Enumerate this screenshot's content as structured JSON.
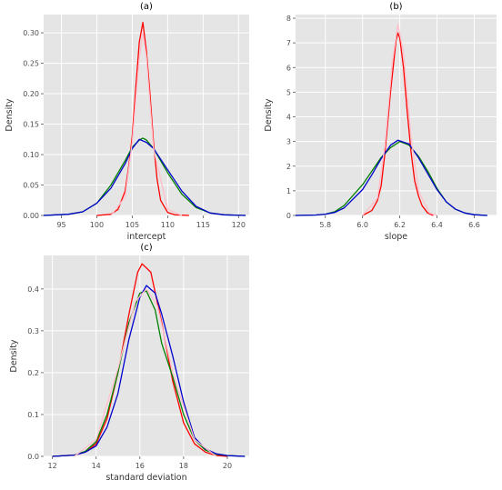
{
  "chart_data": [
    {
      "type": "line",
      "title": "(a)",
      "xlabel": "intercept",
      "ylabel": "Density",
      "xlim": [
        92.5,
        121.5
      ],
      "ylim": [
        0,
        0.33
      ],
      "xticks": [
        95,
        100,
        105,
        110,
        115,
        120
      ],
      "yticks": [
        0.0,
        0.05,
        0.1,
        0.15,
        0.2,
        0.25,
        0.3
      ],
      "ytick_labels": [
        "0.00",
        "0.05",
        "0.10",
        "0.15",
        "0.20",
        "0.25",
        "0.30"
      ],
      "grid": true,
      "series": [
        {
          "color": "#ff0000",
          "x": [
            100,
            102,
            103,
            104,
            104.5,
            105,
            105.5,
            106,
            106.5,
            107,
            107.5,
            108,
            108.5,
            109,
            110,
            111,
            113
          ],
          "y": [
            0.0,
            0.002,
            0.01,
            0.04,
            0.08,
            0.13,
            0.21,
            0.285,
            0.317,
            0.27,
            0.2,
            0.12,
            0.06,
            0.025,
            0.005,
            0.001,
            0.0
          ]
        },
        {
          "color": "#008000",
          "x": [
            92.5,
            96,
            98,
            100,
            102,
            104,
            105,
            106,
            106.5,
            107,
            108,
            110,
            112,
            114,
            116,
            118,
            121
          ],
          "y": [
            0.0,
            0.002,
            0.006,
            0.02,
            0.05,
            0.09,
            0.112,
            0.124,
            0.127,
            0.124,
            0.11,
            0.07,
            0.035,
            0.013,
            0.004,
            0.001,
            0.0
          ]
        },
        {
          "color": "#0000cd",
          "x": [
            92.5,
            96,
            98,
            100,
            102,
            104,
            105,
            106,
            107,
            108,
            110,
            112,
            114,
            116,
            118,
            121
          ],
          "y": [
            0.0,
            0.002,
            0.006,
            0.02,
            0.045,
            0.085,
            0.11,
            0.125,
            0.12,
            0.11,
            0.075,
            0.04,
            0.015,
            0.004,
            0.001,
            0.0
          ]
        },
        {
          "color": "#ffc0cb",
          "x": [
            102,
            104,
            105,
            106,
            106.5,
            107,
            108,
            110,
            112
          ],
          "y": [
            0.0,
            0.03,
            0.12,
            0.26,
            0.3,
            0.26,
            0.11,
            0.01,
            0.0
          ]
        }
      ]
    },
    {
      "type": "line",
      "title": "(b)",
      "xlabel": "slope",
      "ylabel": "Density",
      "xlim": [
        5.64,
        6.72
      ],
      "ylim": [
        0,
        8.15
      ],
      "xticks": [
        5.8,
        6.0,
        6.2,
        6.4,
        6.6
      ],
      "xtick_labels": [
        "5.8",
        "6.0",
        "6.2",
        "6.4",
        "6.6"
      ],
      "yticks": [
        0,
        1,
        2,
        3,
        4,
        5,
        6,
        7,
        8
      ],
      "ytick_labels": [
        "0",
        "1",
        "2",
        "3",
        "4",
        "5",
        "6",
        "7",
        "8"
      ],
      "grid": true,
      "series": [
        {
          "color": "#ff0000",
          "x": [
            6.0,
            6.05,
            6.08,
            6.1,
            6.12,
            6.15,
            6.18,
            6.19,
            6.2,
            6.22,
            6.24,
            6.26,
            6.28,
            6.3,
            6.32,
            6.35,
            6.38
          ],
          "y": [
            0.0,
            0.2,
            0.6,
            1.2,
            2.5,
            5.0,
            7.1,
            7.4,
            7.2,
            6.0,
            4.2,
            2.6,
            1.4,
            0.8,
            0.4,
            0.1,
            0.0
          ]
        },
        {
          "color": "#008000",
          "x": [
            5.64,
            5.75,
            5.8,
            5.85,
            5.9,
            6.0,
            6.05,
            6.1,
            6.15,
            6.2,
            6.25,
            6.3,
            6.35,
            6.4,
            6.45,
            6.5,
            6.55,
            6.6,
            6.67
          ],
          "y": [
            0.0,
            0.02,
            0.05,
            0.15,
            0.4,
            1.25,
            1.8,
            2.35,
            2.75,
            3.0,
            2.85,
            2.4,
            1.8,
            1.1,
            0.55,
            0.25,
            0.1,
            0.03,
            0.0
          ]
        },
        {
          "color": "#0000cd",
          "x": [
            5.64,
            5.75,
            5.8,
            5.85,
            5.9,
            6.0,
            6.05,
            6.1,
            6.15,
            6.19,
            6.25,
            6.3,
            6.35,
            6.4,
            6.45,
            6.5,
            6.55,
            6.6,
            6.67
          ],
          "y": [
            0.0,
            0.02,
            0.05,
            0.12,
            0.3,
            1.05,
            1.65,
            2.3,
            2.85,
            3.05,
            2.9,
            2.35,
            1.7,
            1.05,
            0.55,
            0.25,
            0.1,
            0.03,
            0.0
          ]
        },
        {
          "color": "#ffc0cb",
          "x": [
            6.0,
            6.08,
            6.12,
            6.16,
            6.19,
            6.22,
            6.26,
            6.3,
            6.36,
            6.4
          ],
          "y": [
            0.0,
            0.7,
            2.8,
            6.2,
            7.75,
            6.6,
            3.2,
            1.0,
            0.1,
            0.0
          ]
        }
      ]
    },
    {
      "type": "line",
      "title": "(c)",
      "xlabel": "standard deviation",
      "ylabel": "Density",
      "xlim": [
        11.6,
        21.0
      ],
      "ylim": [
        0,
        0.48
      ],
      "xticks": [
        12,
        14,
        16,
        18,
        20
      ],
      "yticks": [
        0.0,
        0.1,
        0.2,
        0.3,
        0.4
      ],
      "ytick_labels": [
        "0.0",
        "0.1",
        "0.2",
        "0.3",
        "0.4"
      ],
      "grid": true,
      "series": [
        {
          "color": "#ff0000",
          "x": [
            12.0,
            13.0,
            13.5,
            14.0,
            14.5,
            15.0,
            15.5,
            15.9,
            16.1,
            16.5,
            17.0,
            17.5,
            18.0,
            18.5,
            19.0,
            19.5,
            20.0
          ],
          "y": [
            0.0,
            0.003,
            0.01,
            0.03,
            0.09,
            0.2,
            0.34,
            0.44,
            0.46,
            0.44,
            0.32,
            0.18,
            0.08,
            0.03,
            0.01,
            0.002,
            0.0
          ]
        },
        {
          "color": "#008000",
          "x": [
            12.0,
            13.0,
            13.5,
            14.0,
            14.5,
            15.0,
            15.5,
            16.0,
            16.3,
            16.7,
            17.0,
            17.5,
            18.0,
            18.5,
            19.0,
            19.5,
            20.0,
            20.8
          ],
          "y": [
            0.0,
            0.003,
            0.012,
            0.035,
            0.1,
            0.2,
            0.32,
            0.39,
            0.395,
            0.35,
            0.27,
            0.19,
            0.1,
            0.04,
            0.015,
            0.005,
            0.002,
            0.0
          ]
        },
        {
          "color": "#0000cd",
          "x": [
            12.0,
            13.0,
            13.5,
            14.0,
            14.5,
            15.0,
            15.5,
            16.0,
            16.3,
            16.7,
            17.0,
            17.5,
            18.0,
            18.5,
            19.0,
            19.5,
            20.0,
            20.8
          ],
          "y": [
            0.0,
            0.003,
            0.01,
            0.025,
            0.07,
            0.15,
            0.28,
            0.38,
            0.408,
            0.39,
            0.34,
            0.24,
            0.13,
            0.045,
            0.018,
            0.006,
            0.002,
            0.0
          ]
        },
        {
          "color": "#ffc0cb",
          "x": [
            13.0,
            14.0,
            15.0,
            15.8,
            16.3,
            16.8,
            17.5,
            18.5,
            19.5
          ],
          "y": [
            0.0,
            0.04,
            0.21,
            0.37,
            0.4,
            0.36,
            0.2,
            0.04,
            0.0
          ]
        }
      ]
    }
  ]
}
